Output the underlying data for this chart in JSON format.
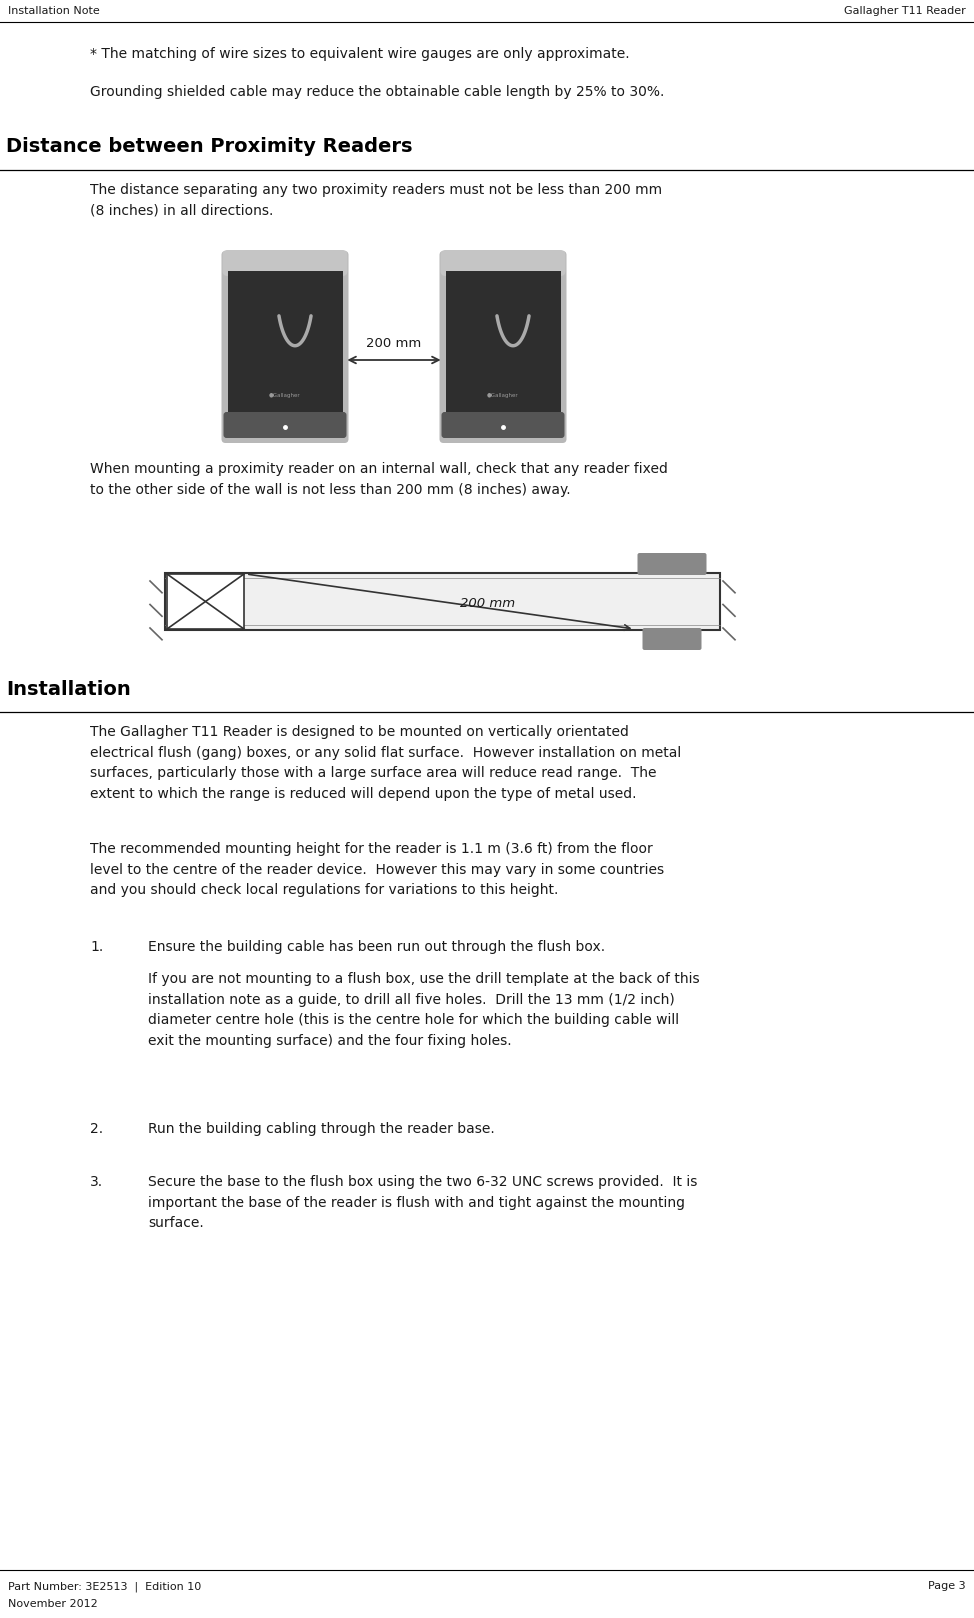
{
  "bg_color": "#ffffff",
  "header_left": "Installation Note",
  "header_right": "Gallagher T11 Reader",
  "footer_left1": "Part Number: 3E2513  |  Edition 10",
  "footer_left2": "November 2012",
  "footer_right": "Page 3",
  "note1": "* The matching of wire sizes to equivalent wire gauges are only approximate.",
  "note2": "Grounding shielded cable may reduce the obtainable cable length by 25% to 30%.",
  "section1_title": "Distance between Proximity Readers",
  "section1_para1": "The distance separating any two proximity readers must not be less than 200 mm\n(8 inches) in all directions.",
  "label_200mm_horiz": "200 mm",
  "section1_para2": "When mounting a proximity reader on an internal wall, check that any reader fixed\nto the other side of the wall is not less than 200 mm (8 inches) away.",
  "label_200mm_diag": "200 mm",
  "section2_title": "Installation",
  "section2_para1": "The Gallagher T11 Reader is designed to be mounted on vertically orientated\nelectrical flush (gang) boxes, or any solid flat surface.  However installation on metal\nsurfaces, particularly those with a large surface area will reduce read range.  The\nextent to which the range is reduced will depend upon the type of metal used.",
  "section2_para2": "The recommended mounting height for the reader is 1.1 m (3.6 ft) from the floor\nlevel to the centre of the reader device.  However this may vary in some countries\nand you should check local regulations for variations to this height.",
  "item1_num": "1.",
  "item1_text": "Ensure the building cable has been run out through the flush box.",
  "item1_sub": "If you are not mounting to a flush box, use the drill template at the back of this\ninstallation note as a guide, to drill all five holes.  Drill the 13 mm (1/2 inch)\ndiameter centre hole (this is the centre hole for which the building cable will\nexit the mounting surface) and the four fixing holes.",
  "item2_num": "2.",
  "item2_text": "Run the building cabling through the reader base.",
  "item3_num": "3.",
  "item3_text": "Secure the base to the flush box using the two 6-32 UNC screws provided.  It is\nimportant the base of the reader is flush with and tight against the mounting\nsurface.",
  "text_color": "#1a1a1a",
  "section_title_color": "#000000",
  "line_color": "#000000",
  "reader_dark": "#2e2e2e",
  "reader_gray": "#b0b0b0",
  "reader_light_gray": "#c8c8c8",
  "reader_mid_gray": "#888888",
  "reader_curve_color": "#888888",
  "wall_fill": "#f0f0f0",
  "wall_edge": "#333333",
  "tab_color": "#888888",
  "arrow_color": "#333333"
}
